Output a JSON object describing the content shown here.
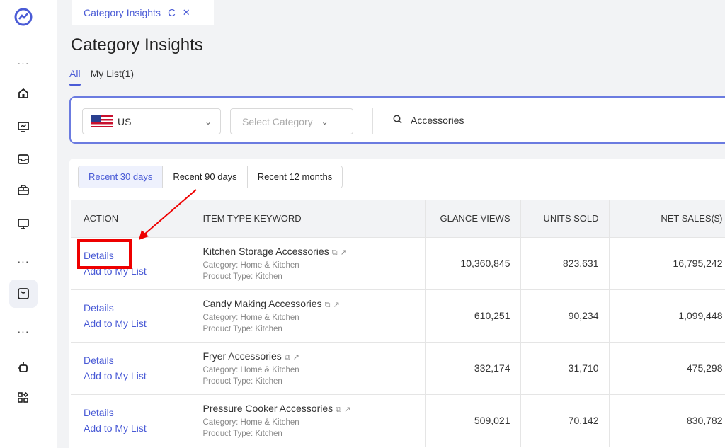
{
  "sidebar": {
    "icons": [
      "logo-icon",
      "more-icon",
      "home-icon",
      "chart-icon",
      "inbox-icon",
      "box-icon",
      "monitor-icon",
      "more-icon",
      "bag-icon",
      "more-icon",
      "robot-icon",
      "apps-icon"
    ],
    "dots": "···"
  },
  "tab": {
    "label": "Category Insights",
    "refresh": "C",
    "close": "✕"
  },
  "page": {
    "title": "Category Insights",
    "tabs": [
      {
        "label": "All"
      },
      {
        "label": "My List(1)"
      }
    ]
  },
  "filters": {
    "country": "US",
    "category_placeholder": "Select Category",
    "search_value": "Accessories"
  },
  "range_tabs": [
    "Recent 30 days",
    "Recent 90 days",
    "Recent 12 months"
  ],
  "table": {
    "headers": [
      "ACTION",
      "ITEM TYPE KEYWORD",
      "GLANCE VIEWS",
      "UNITS SOLD",
      "NET SALES($)"
    ],
    "rows": [
      {
        "details": "Details",
        "add": "Add to My List",
        "keyword": "Kitchen Storage Accessories",
        "category": "Category: Home & Kitchen",
        "product_type": "Product Type: Kitchen",
        "glance_views": "10,360,845",
        "units_sold": "823,631",
        "net_sales": "16,795,242"
      },
      {
        "details": "Details",
        "add": "Add to My List",
        "keyword": "Candy Making Accessories",
        "category": "Category: Home & Kitchen",
        "product_type": "Product Type: Kitchen",
        "glance_views": "610,251",
        "units_sold": "90,234",
        "net_sales": "1,099,448"
      },
      {
        "details": "Details",
        "add": "Add to My List",
        "keyword": "Fryer Accessories",
        "category": "Category: Home & Kitchen",
        "product_type": "Product Type: Kitchen",
        "glance_views": "332,174",
        "units_sold": "31,710",
        "net_sales": "475,298"
      },
      {
        "details": "Details",
        "add": "Add to My List",
        "keyword": "Pressure Cooker Accessories",
        "category": "Category: Home & Kitchen",
        "product_type": "Product Type: Kitchen",
        "glance_views": "509,021",
        "units_sold": "70,142",
        "net_sales": "830,782"
      }
    ]
  },
  "colors": {
    "accent": "#4a5bd6",
    "annotation": "#ee0000"
  }
}
